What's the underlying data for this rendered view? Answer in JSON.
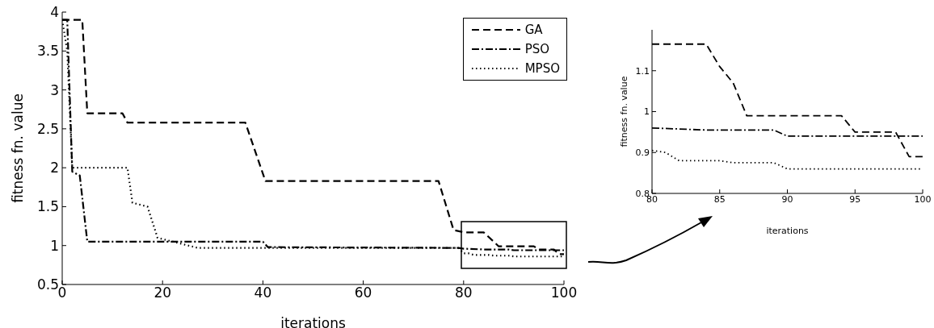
{
  "chart_data": [
    {
      "type": "line",
      "xlabel": "iterations",
      "ylabel": "fitness fn. value",
      "xlim": [
        0,
        100
      ],
      "xticks": [
        0,
        20,
        40,
        60,
        80,
        100
      ],
      "ylim": [
        0.5,
        4
      ],
      "yticks": [
        0.5,
        1,
        1.5,
        2,
        2.5,
        3,
        3.5,
        4
      ],
      "grid": false,
      "legend": "top right",
      "marker": "none",
      "series": [
        {
          "name": "GA",
          "color": "#000000",
          "line_style": "dashed",
          "x": [
            0,
            4,
            5,
            12,
            13,
            36.5,
            40.5,
            75,
            78,
            80,
            84,
            87,
            94,
            95,
            98,
            99,
            100
          ],
          "values": [
            3.9,
            3.9,
            2.7,
            2.7,
            2.58,
            2.58,
            1.83,
            1.83,
            1.2,
            1.17,
            1.17,
            0.99,
            0.99,
            0.95,
            0.95,
            0.89,
            0.89
          ]
        },
        {
          "name": "PSO",
          "color": "#000000",
          "line_style": "dashdot",
          "x": [
            0,
            1,
            2,
            3.5,
            5,
            40,
            41,
            79,
            80,
            84,
            89,
            90,
            100
          ],
          "values": [
            3.9,
            3.9,
            1.95,
            1.9,
            1.05,
            1.05,
            0.98,
            0.97,
            0.96,
            0.95,
            0.95,
            0.94,
            0.94
          ]
        },
        {
          "name": "MPSO",
          "color": "#000000",
          "line_style": "dotted",
          "x": [
            0,
            1,
            2,
            13,
            14,
            17,
            19,
            27,
            79,
            80,
            81,
            82,
            85,
            86,
            89,
            90,
            100
          ],
          "values": [
            3.9,
            3.5,
            2.0,
            2.0,
            1.55,
            1.5,
            1.1,
            0.97,
            0.97,
            0.9,
            0.9,
            0.88,
            0.88,
            0.87,
            0.87,
            0.86,
            0.86
          ]
        }
      ]
    },
    {
      "type": "line",
      "xlabel": "iterations",
      "ylabel": "fitness fn. value",
      "xlim": [
        80,
        100
      ],
      "xticks": [
        80,
        85,
        90,
        95,
        100
      ],
      "ylim": [
        0.8,
        1.2
      ],
      "yticks": [
        0.8,
        0.9,
        1,
        1.1
      ],
      "grid": false,
      "marker": "none",
      "series": [
        {
          "color": "#000000",
          "line_style": "dashed",
          "x": [
            80,
            84,
            85,
            86,
            87,
            94,
            95,
            98,
            99,
            100
          ],
          "values": [
            1.165,
            1.165,
            1.11,
            1.07,
            0.99,
            0.99,
            0.95,
            0.95,
            0.89,
            0.89
          ]
        },
        {
          "color": "#000000",
          "line_style": "dashdot",
          "x": [
            80,
            84,
            89,
            90,
            100
          ],
          "values": [
            0.96,
            0.955,
            0.955,
            0.94,
            0.94
          ]
        },
        {
          "color": "#000000",
          "line_style": "dotted",
          "x": [
            80,
            81,
            82,
            85,
            86,
            89,
            90,
            100
          ],
          "values": [
            0.905,
            0.9,
            0.88,
            0.88,
            0.875,
            0.875,
            0.86,
            0.86
          ]
        }
      ]
    }
  ]
}
